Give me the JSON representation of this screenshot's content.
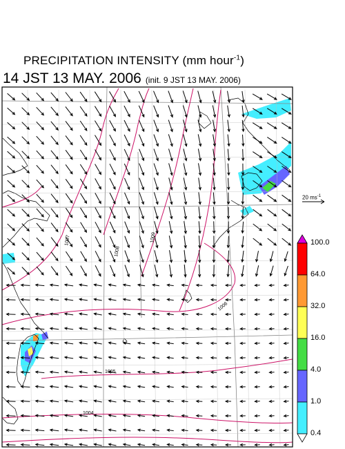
{
  "title": {
    "main": "PRECIPITATION INTENSITY (mm hour",
    "main_exp": "-1",
    "main_close": ")",
    "time": "14 JST 13 MAY. 2006",
    "init_open": "(init. 9 JST 13 MAY. 2006)"
  },
  "reference_vector": {
    "label": "20 ms",
    "label_exp": "-1"
  },
  "colorbar": {
    "labels": [
      "100.0",
      "64.0",
      "32.0",
      "16.0",
      "4.0",
      "1.0",
      "0.4"
    ],
    "colors": [
      "#dd00dd",
      "#ff0000",
      "#ff9933",
      "#ffff55",
      "#44dd44",
      "#6666ff",
      "#44eeff"
    ]
  },
  "isobars": [
    {
      "label": "1004"
    },
    {
      "label": "1005"
    },
    {
      "label": "1006"
    },
    {
      "label": "1007"
    },
    {
      "label": "1008"
    },
    {
      "label": "1009"
    }
  ],
  "colors": {
    "isobar": "#cc1166",
    "grid": "#999999",
    "coast": "#000000"
  }
}
